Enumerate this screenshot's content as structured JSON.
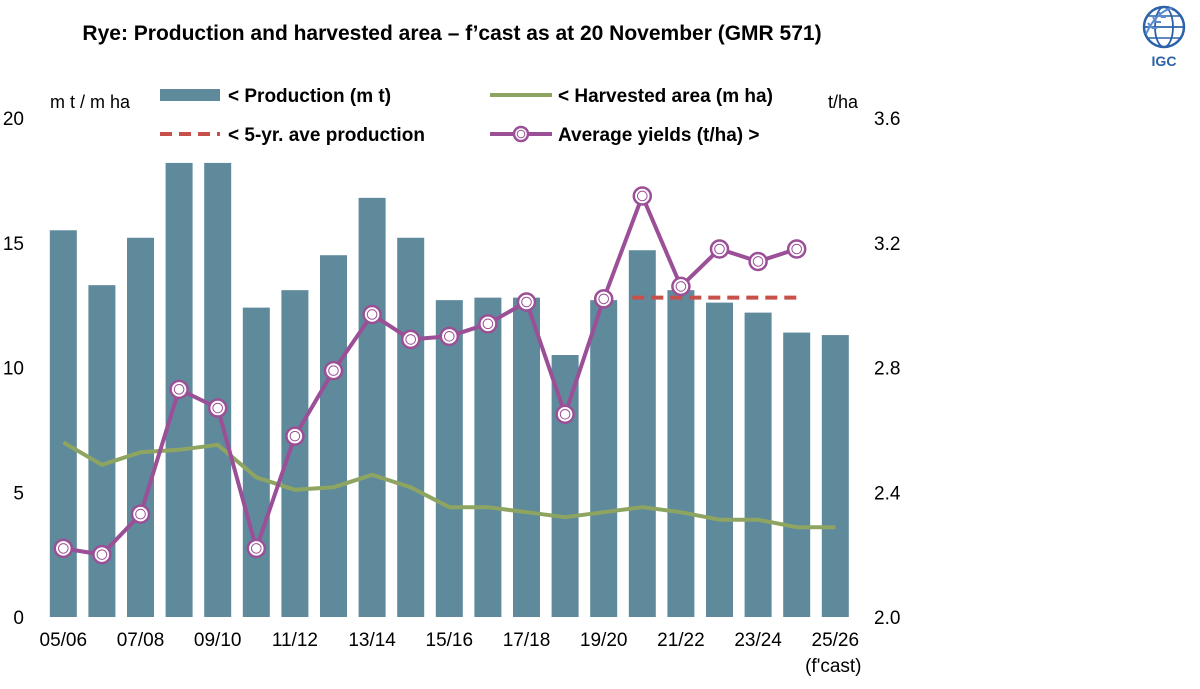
{
  "chart_data": {
    "type": "bar",
    "title": "Rye: Production and harvested area – f’cast as at 20 November (GMR 571)",
    "left_axis_label": "m t / m ha",
    "right_axis_label": "t/ha",
    "categories": [
      "05/06",
      "06/07",
      "07/08",
      "08/09",
      "09/10",
      "10/11",
      "11/12",
      "12/13",
      "13/14",
      "14/15",
      "15/16",
      "16/17",
      "17/18",
      "18/19",
      "19/20",
      "20/21",
      "21/22",
      "22/23",
      "23/24",
      "24/25",
      "25/26"
    ],
    "x_tick_labels": [
      "05/06",
      "07/08",
      "09/10",
      "11/12",
      "13/14",
      "15/16",
      "17/18",
      "19/20",
      "21/22",
      "23/24",
      "25/26"
    ],
    "x_tick_note": "(f'cast)",
    "ylim_left": [
      0,
      20
    ],
    "yticks_left": [
      "0",
      "5",
      "10",
      "15",
      "20"
    ],
    "ylim_right": [
      2.0,
      3.6
    ],
    "yticks_right": [
      "2.0",
      "2.4",
      "2.8",
      "3.2",
      "3.6"
    ],
    "series": [
      {
        "name": "< Production (m t)",
        "kind": "bar",
        "axis": "left",
        "color": "#5f8a9c",
        "values": [
          15.5,
          13.3,
          15.2,
          18.2,
          18.2,
          12.4,
          13.1,
          14.5,
          16.8,
          15.2,
          12.7,
          12.8,
          12.8,
          10.5,
          12.7,
          14.7,
          13.1,
          12.6,
          12.2,
          11.4,
          11.3
        ]
      },
      {
        "name": "< Harvested area (m ha)",
        "kind": "line",
        "axis": "left",
        "color": "#8ea561",
        "values": [
          7.0,
          6.1,
          6.6,
          6.7,
          6.9,
          5.6,
          5.1,
          5.2,
          5.7,
          5.2,
          4.4,
          4.4,
          4.2,
          4.0,
          4.2,
          4.4,
          4.2,
          3.9,
          3.9,
          3.6,
          3.6
        ]
      },
      {
        "name": "< 5-yr. ave production",
        "kind": "dashed",
        "axis": "left",
        "color": "#c8504b",
        "start_index": 15,
        "end_index": 19,
        "value": 12.8
      },
      {
        "name": "Average yields (t/ha) >",
        "kind": "line-markers",
        "axis": "right",
        "color": "#9b4f96",
        "values": [
          2.22,
          2.2,
          2.33,
          2.73,
          2.67,
          2.22,
          2.58,
          2.79,
          2.97,
          2.89,
          2.9,
          2.94,
          3.01,
          2.65,
          3.02,
          3.35,
          3.06,
          3.18,
          3.14,
          3.18,
          null
        ]
      }
    ],
    "grid": false,
    "legend_placement": "top"
  },
  "logo": {
    "text": "IGC"
  }
}
